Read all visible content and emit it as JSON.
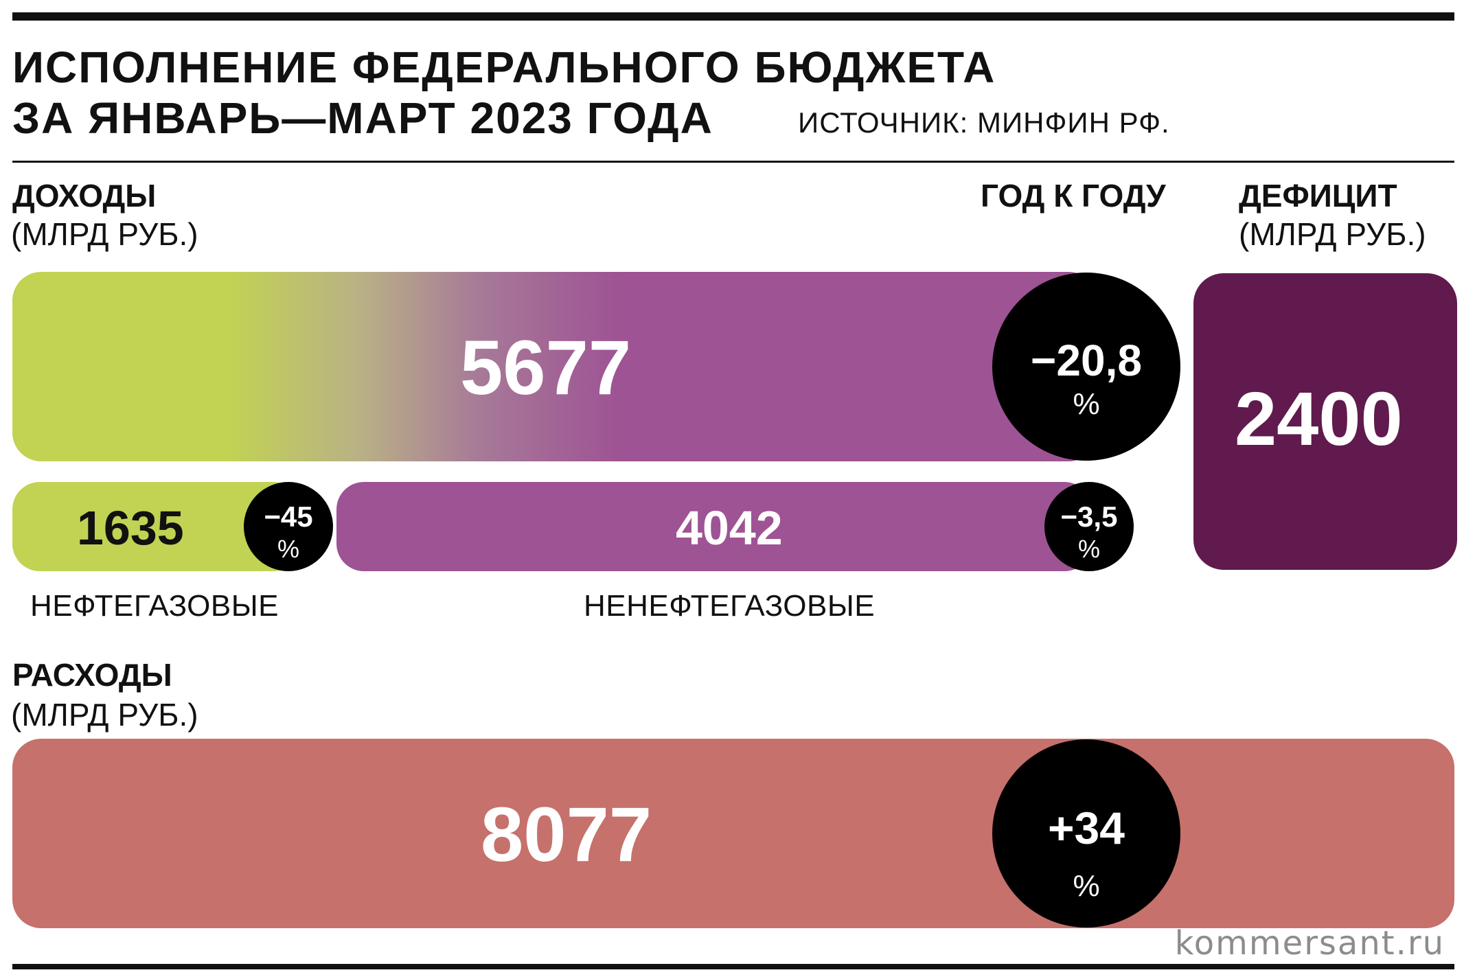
{
  "title": {
    "line1": "ИСПОЛНЕНИЕ ФЕДЕРАЛЬНОГО БЮДЖЕТА",
    "line2": "ЗА ЯНВАРЬ—МАРТ 2023 ГОДА",
    "source": "ИСТОЧНИК:  МИНФИН РФ."
  },
  "headers": {
    "income": "ДОХОДЫ",
    "income_unit": "(МЛРД РУБ.)",
    "yoy": "ГОД К ГОДУ",
    "deficit": "ДЕФИЦИТ",
    "deficit_unit": "(МЛРД РУБ.)",
    "expenses": "РАСХОДЫ",
    "expenses_unit": "(МЛРД РУБ.)"
  },
  "footer": "kommersant.ru",
  "colors": {
    "oil_gas": "#c2d253",
    "non_oil_gas": "#9e5394",
    "deficit": "#601a4d",
    "expenses": "#c6716b",
    "yoy_circle": "#000000"
  },
  "chart_data": {
    "type": "bar",
    "unit": "млрд руб.",
    "income_total": {
      "value": "5677",
      "yoy": "−20,8",
      "yoy_unit": "%"
    },
    "income_parts": [
      {
        "name": "НЕФТЕГАЗОВЫЕ",
        "value": "1635",
        "yoy": "−45",
        "yoy_unit": "%"
      },
      {
        "name": "НЕНЕФТЕГАЗОВЫЕ",
        "value": "4042",
        "yoy": "−3,5",
        "yoy_unit": "%"
      }
    ],
    "deficit": {
      "value": "2400"
    },
    "expenses": {
      "value": "8077",
      "yoy": "+34",
      "yoy_unit": "%"
    }
  }
}
